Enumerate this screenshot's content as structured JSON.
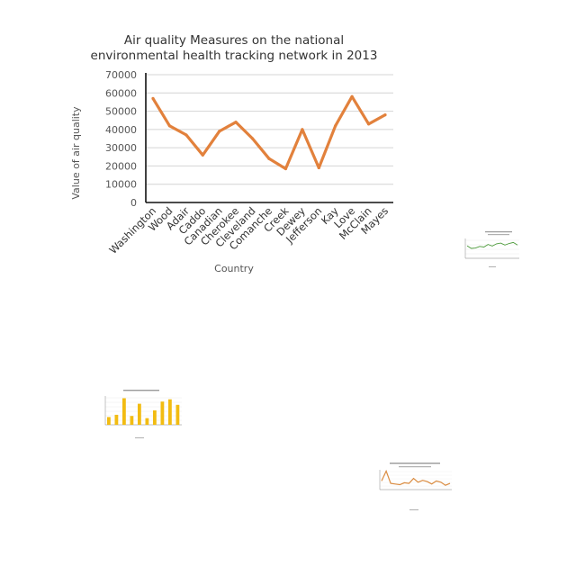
{
  "chart_data": [
    {
      "type": "line",
      "title_lines": [
        "Air quality Measures on the national",
        "environmental health tracking network in 2013"
      ],
      "xlabel": "Country",
      "ylabel": "Value  of  air  quality",
      "categories": [
        "Washington",
        "Wood",
        "Adair",
        "Caddo",
        "Canadian",
        "Cherokee",
        "Cleveland",
        "Comanche",
        "Creek",
        "Dewey",
        "Jefferson",
        "Kay",
        "Love",
        "McClain",
        "Mayes"
      ],
      "series": [
        {
          "values": [
            57000,
            42000,
            37000,
            26000,
            39000,
            44000,
            35000,
            24000,
            18500,
            40000,
            19000,
            42000,
            58000,
            43000,
            48000
          ]
        }
      ],
      "ylim": [
        0,
        70000
      ],
      "yticks": [
        0,
        10000,
        20000,
        30000,
        40000,
        50000,
        60000,
        70000
      ],
      "grid": true,
      "line_color": "#E2813C"
    },
    {
      "type": "line",
      "line_color": "#4C9A3A",
      "values": [
        38,
        30,
        31,
        36,
        34,
        42,
        37,
        44,
        46,
        40,
        45,
        48,
        40
      ]
    },
    {
      "type": "bar",
      "bar_color": "#F2BC12",
      "values": [
        14,
        18,
        48,
        16,
        38,
        12,
        26,
        42,
        46,
        36
      ]
    },
    {
      "type": "line",
      "line_color": "#DA8B3F",
      "values": [
        28,
        60,
        20,
        18,
        16,
        22,
        20,
        36,
        24,
        30,
        26,
        18,
        28,
        24,
        14,
        20
      ]
    }
  ]
}
